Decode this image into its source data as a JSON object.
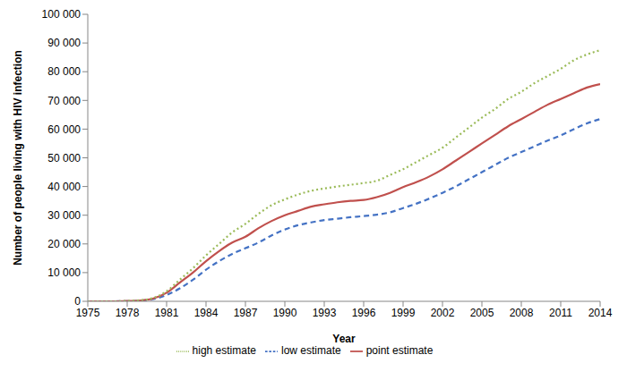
{
  "chart_data": {
    "type": "line",
    "x_label": "Year",
    "y_label": "Number of people living with  HIV infection",
    "x": [
      1975,
      1976,
      1977,
      1978,
      1979,
      1980,
      1981,
      1982,
      1983,
      1984,
      1985,
      1986,
      1987,
      1988,
      1989,
      1990,
      1991,
      1992,
      1993,
      1994,
      1995,
      1996,
      1997,
      1998,
      1999,
      2000,
      2001,
      2002,
      2003,
      2004,
      2005,
      2006,
      2007,
      2008,
      2009,
      2010,
      2011,
      2012,
      2013,
      2014
    ],
    "series": [
      {
        "name": "low estimate",
        "color": "#4472c4",
        "line_style": "dashed",
        "values": [
          0,
          0,
          0,
          50,
          200,
          800,
          2200,
          4500,
          7500,
          11000,
          14000,
          16500,
          18500,
          20500,
          23000,
          25000,
          26500,
          27500,
          28300,
          28800,
          29300,
          29700,
          30200,
          31000,
          32500,
          34000,
          35800,
          37800,
          40000,
          42500,
          45000,
          47500,
          50000,
          52000,
          54000,
          56000,
          57800,
          60000,
          62000,
          63500
        ]
      },
      {
        "name": "point estimate",
        "color": "#c0504d",
        "line_style": "solid",
        "values": [
          0,
          0,
          0,
          100,
          300,
          1000,
          3000,
          6500,
          10000,
          14000,
          17500,
          20500,
          22500,
          25500,
          28000,
          30000,
          31500,
          33000,
          33800,
          34500,
          35000,
          35300,
          36300,
          37800,
          39800,
          41500,
          43500,
          46000,
          49000,
          52000,
          55000,
          58000,
          61000,
          63500,
          66000,
          68500,
          70500,
          72500,
          74500,
          75700
        ]
      },
      {
        "name": "high estimate",
        "color": "#9bbb59",
        "line_style": "dotted",
        "values": [
          0,
          0,
          0,
          150,
          400,
          1200,
          3500,
          7500,
          11500,
          16000,
          20000,
          24000,
          27000,
          30500,
          33500,
          35500,
          37200,
          38500,
          39300,
          40000,
          40600,
          41200,
          42000,
          44000,
          46000,
          48500,
          51000,
          53500,
          57000,
          60500,
          64000,
          67000,
          70500,
          73000,
          76000,
          78500,
          81000,
          84000,
          86000,
          87500
        ]
      }
    ],
    "xlim": [
      1975,
      2014
    ],
    "xticks": [
      1975,
      1978,
      1981,
      1984,
      1987,
      1990,
      1993,
      1996,
      1999,
      2002,
      2005,
      2008,
      2011,
      2014
    ],
    "ylim": [
      0,
      100000
    ],
    "yticks": [
      0,
      {
        "value": 10000,
        "label": "10 000"
      },
      {
        "value": 20000,
        "label": "20 000"
      },
      {
        "value": 30000,
        "label": "30 000"
      },
      {
        "value": 40000,
        "label": "40 000"
      },
      {
        "value": 50000,
        "label": "50 000"
      },
      {
        "value": 60000,
        "label": "60 000"
      },
      {
        "value": 70000,
        "label": "70 000"
      },
      {
        "value": 80000,
        "label": "80 000"
      },
      {
        "value": 90000,
        "label": "90 000"
      },
      {
        "value": 100000,
        "label": "100 000"
      }
    ],
    "grid": false,
    "legend": "bottom",
    "marker": "none"
  }
}
